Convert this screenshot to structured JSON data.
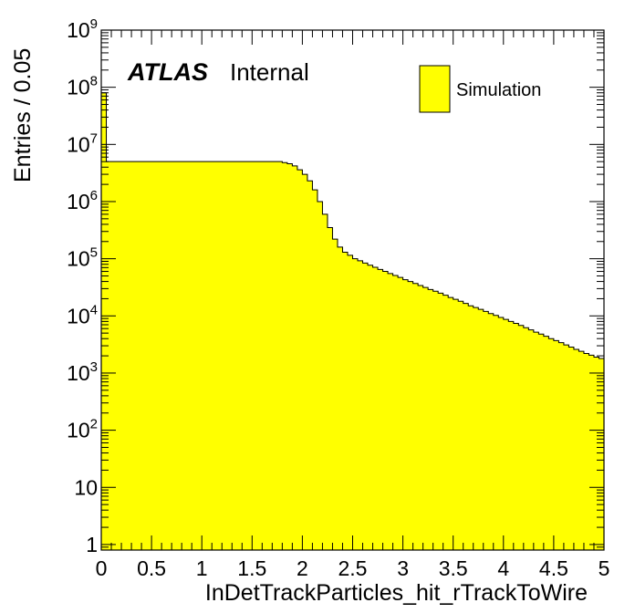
{
  "chart_data": {
    "type": "histogram",
    "xlabel": "InDetTrackParticles_hit_rTrackToWire",
    "ylabel": "Entries / 0.05",
    "bin_width": 0.05,
    "xlim": [
      0,
      5
    ],
    "ylim": [
      0.8,
      1000000000
    ],
    "yscale": "log",
    "fill_color": "#ffff00",
    "x_tick_labels": [
      "0",
      "0.5",
      "1",
      "1.5",
      "2",
      "2.5",
      "3",
      "3.5",
      "4",
      "4.5",
      "5"
    ],
    "y_tick_labels": [
      {
        "value": 1,
        "base": "1",
        "exp": ""
      },
      {
        "value": 10,
        "base": "10",
        "exp": ""
      },
      {
        "value": 100,
        "base": "10",
        "exp": "2"
      },
      {
        "value": 1000,
        "base": "10",
        "exp": "3"
      },
      {
        "value": 10000,
        "base": "10",
        "exp": "4"
      },
      {
        "value": 100000,
        "base": "10",
        "exp": "5"
      },
      {
        "value": 1000000,
        "base": "10",
        "exp": "6"
      },
      {
        "value": 10000000,
        "base": "10",
        "exp": "7"
      },
      {
        "value": 100000000,
        "base": "10",
        "exp": "8"
      },
      {
        "value": 1000000000,
        "base": "10",
        "exp": "9"
      }
    ],
    "atlas_label": "ATLAS",
    "atlas_status": "Internal",
    "legend": [
      {
        "name": "Simulation",
        "color": "#ffff00"
      }
    ],
    "series": [
      {
        "name": "Simulation",
        "bin_edges_start": 0,
        "values": [
          80000000,
          5000000,
          5000000,
          5000000,
          5000000,
          5000000,
          5000000,
          5000000,
          5000000,
          5000000,
          5000000,
          5000000,
          5000000,
          5000000,
          5000000,
          5000000,
          5000000,
          5000000,
          5000000,
          5000000,
          5000000,
          5000000,
          5000000,
          5000000,
          5000000,
          5000000,
          5000000,
          5000000,
          5000000,
          5000000,
          5000000,
          5000000,
          5000000,
          5000000,
          5000000,
          5000000,
          4800000,
          4600000,
          4200000,
          3600000,
          3000000,
          2300000,
          1600000,
          1000000,
          600000,
          350000,
          220000,
          160000,
          130000,
          115000,
          100000,
          92000,
          84000,
          77000,
          71000,
          65000,
          60000,
          55000,
          51000,
          47000,
          43000,
          40000,
          37000,
          34000,
          31500,
          29000,
          27000,
          25000,
          23000,
          21000,
          19500,
          18000,
          16500,
          15000,
          14000,
          13000,
          12000,
          11000,
          10200,
          9400,
          8700,
          8000,
          7400,
          6800,
          6200,
          5700,
          5200,
          4800,
          4400,
          4000,
          3700,
          3400,
          3100,
          2850,
          2600,
          2400,
          2200,
          2050,
          1900,
          1800
        ]
      }
    ]
  }
}
